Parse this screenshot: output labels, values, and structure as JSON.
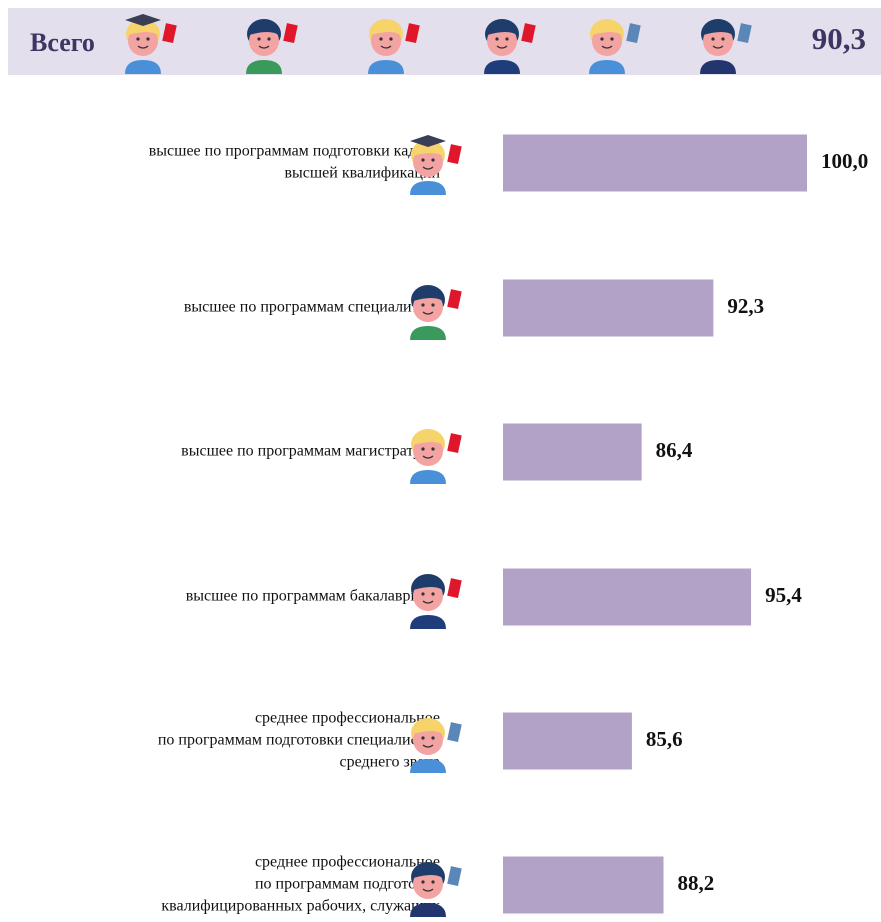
{
  "header": {
    "title": "Всего",
    "total": "90,3"
  },
  "chart_data": {
    "type": "barh",
    "categories": [
      [
        "высшее по программам подготовки кадров",
        "высшей квалификации"
      ],
      [
        "высшее по программам специалитета"
      ],
      [
        "высшее по программам  магистратуры"
      ],
      [
        "высшее по программам бакалавриата"
      ],
      [
        "среднее профессиональное",
        "по программам подготовки специалистов",
        "среднего звена"
      ],
      [
        "среднее профессиональное",
        "по программам подготовки",
        "квалифицированных рабочих, служащих"
      ]
    ],
    "values": [
      100.0,
      92.3,
      86.4,
      95.4,
      85.6,
      88.2
    ],
    "value_labels": [
      "100,0",
      "92,3",
      "86,4",
      "95,4",
      "85,6",
      "88,2"
    ],
    "color": "#b3a2c7",
    "xlim": [
      75,
      100
    ]
  }
}
